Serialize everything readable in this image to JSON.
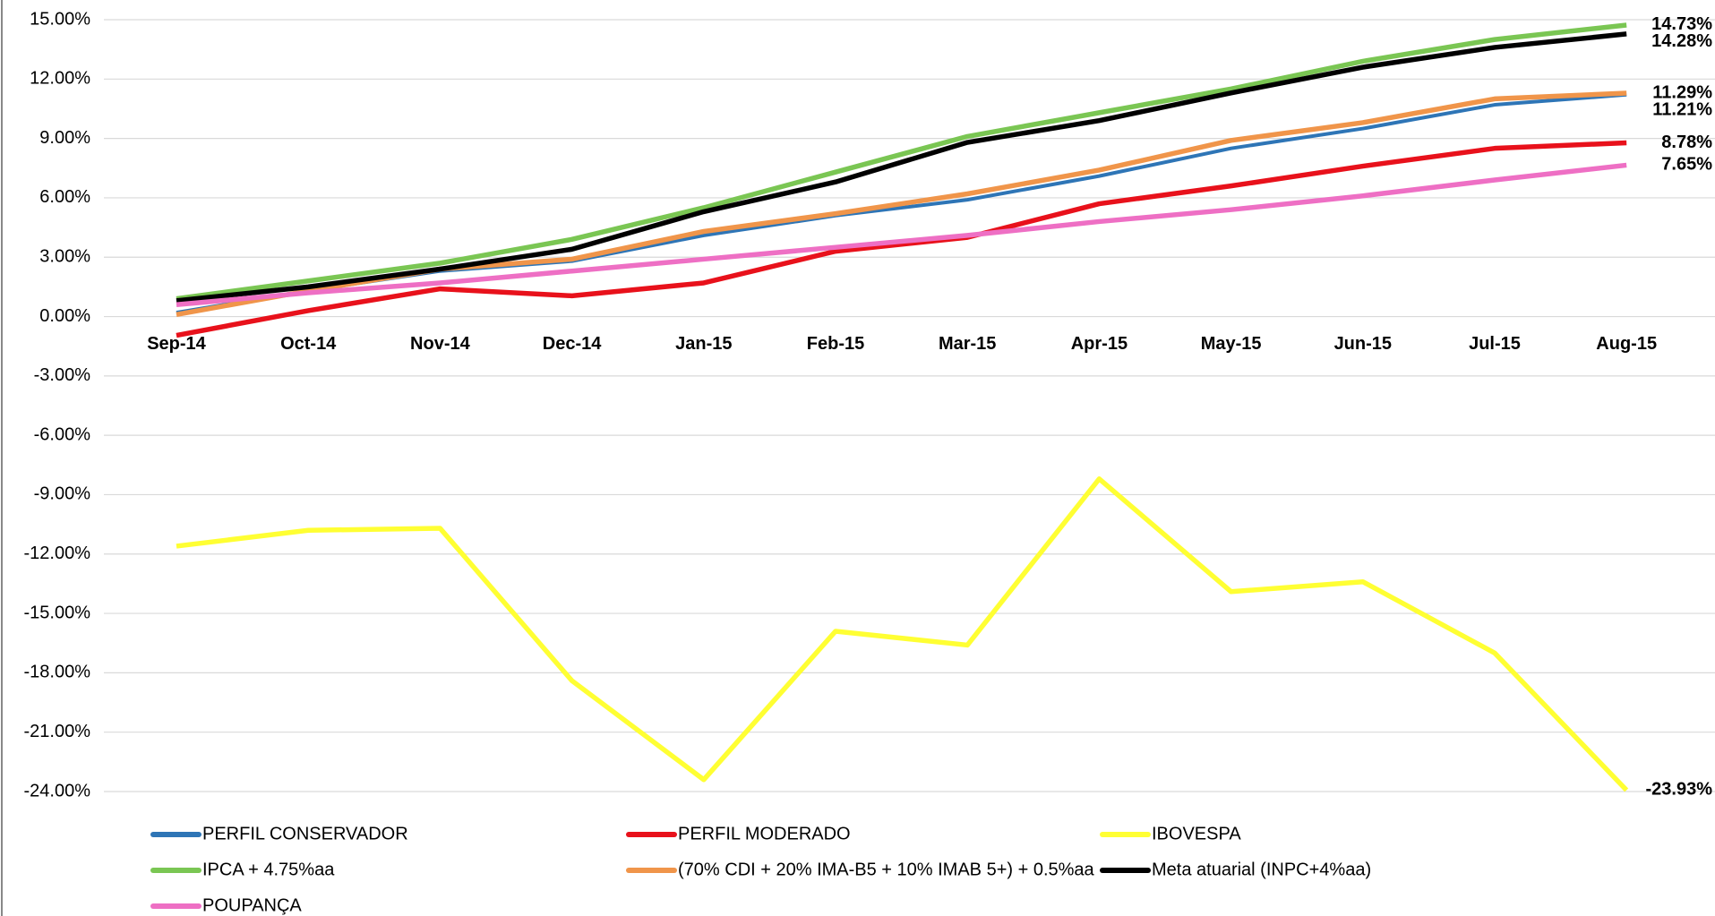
{
  "chart_data": {
    "type": "line",
    "categories": [
      "Sep-14",
      "Oct-14",
      "Nov-14",
      "Dec-14",
      "Jan-15",
      "Feb-15",
      "Mar-15",
      "Apr-15",
      "May-15",
      "Jun-15",
      "Jul-15",
      "Aug-15"
    ],
    "ylim": [
      -24,
      15
    ],
    "yticks": [
      {
        "value": 15,
        "label": "15.00%"
      },
      {
        "value": 12,
        "label": "12.00%"
      },
      {
        "value": 9,
        "label": "9.00%"
      },
      {
        "value": 6,
        "label": "6.00%"
      },
      {
        "value": 3,
        "label": "3.00%"
      },
      {
        "value": 0,
        "label": "0.00%"
      },
      {
        "value": -3,
        "label": "-3.00%"
      },
      {
        "value": -6,
        "label": "-6.00%"
      },
      {
        "value": -9,
        "label": "-9.00%"
      },
      {
        "value": -12,
        "label": "-12.00%"
      },
      {
        "value": -15,
        "label": "-15.00%"
      },
      {
        "value": -18,
        "label": "-18.00%"
      },
      {
        "value": -21,
        "label": "-21.00%"
      },
      {
        "value": -24,
        "label": "-24.00%"
      }
    ],
    "grid": true,
    "series": [
      {
        "name": "PERFIL CONSERVADOR",
        "color": "#2e75b6",
        "label_color": "#2e75b6",
        "values": [
          0.2,
          1.3,
          2.3,
          2.8,
          4.1,
          5.1,
          5.9,
          7.1,
          8.5,
          9.5,
          10.7,
          11.21
        ],
        "value_labels": [
          null,
          null,
          null,
          null,
          null,
          null,
          null,
          null,
          null,
          null,
          null,
          "11.21%"
        ]
      },
      {
        "name": "PERFIL MODERADO",
        "color": "#e8111b",
        "label_color": "#e00000",
        "values": [
          -0.95,
          0.3,
          1.4,
          1.05,
          1.7,
          3.3,
          4.0,
          5.7,
          6.6,
          7.6,
          8.5,
          8.78
        ],
        "value_labels": [
          null,
          null,
          null,
          null,
          null,
          null,
          null,
          null,
          null,
          null,
          null,
          "8.78%"
        ]
      },
      {
        "name": "IBOVESPA",
        "color": "#ffff33",
        "label_color": "#f0b400",
        "values": [
          -11.6,
          -10.8,
          -10.7,
          -18.4,
          -23.4,
          -15.9,
          -16.6,
          -8.2,
          -13.9,
          -13.4,
          -17.0,
          -23.93
        ],
        "value_labels": [
          null,
          null,
          null,
          null,
          null,
          null,
          null,
          null,
          null,
          null,
          null,
          "-23.93%"
        ]
      },
      {
        "name": "IPCA + 4.75%aa",
        "color": "#7ac653",
        "label_color": "#2e9e6e",
        "values": [
          0.9,
          1.8,
          2.7,
          3.9,
          5.5,
          7.3,
          9.1,
          10.3,
          11.5,
          12.9,
          14.0,
          14.73
        ],
        "value_labels": [
          null,
          null,
          null,
          null,
          null,
          null,
          null,
          null,
          null,
          null,
          null,
          "14.73%"
        ]
      },
      {
        "name": "(70% CDI + 20% IMA-B5 + 10% IMAB 5+) + 0.5%aa",
        "color": "#f0954a",
        "label_color": "#ed7d31",
        "values": [
          0.1,
          1.3,
          2.4,
          2.9,
          4.3,
          5.2,
          6.2,
          7.4,
          8.9,
          9.8,
          11.0,
          11.29
        ],
        "value_labels": [
          null,
          null,
          null,
          null,
          null,
          null,
          null,
          null,
          null,
          null,
          null,
          "11.29%"
        ]
      },
      {
        "name": "Meta atuarial (INPC+4%aa)",
        "color": "#000000",
        "label_color": "#000000",
        "values": [
          0.8,
          1.5,
          2.4,
          3.4,
          5.3,
          6.8,
          8.8,
          9.9,
          11.3,
          12.6,
          13.6,
          14.28
        ],
        "value_labels": [
          null,
          null,
          null,
          null,
          null,
          null,
          null,
          null,
          null,
          null,
          null,
          "14.28%"
        ]
      },
      {
        "name": "POUPANÇA",
        "color": "#ee6fc4",
        "label_color": "#f06fc0",
        "values": [
          0.6,
          1.2,
          1.7,
          2.3,
          2.9,
          3.5,
          4.1,
          4.8,
          5.4,
          6.1,
          6.9,
          7.65
        ],
        "value_labels": [
          null,
          null,
          null,
          null,
          null,
          null,
          null,
          null,
          null,
          null,
          null,
          "7.65%"
        ]
      }
    ]
  }
}
